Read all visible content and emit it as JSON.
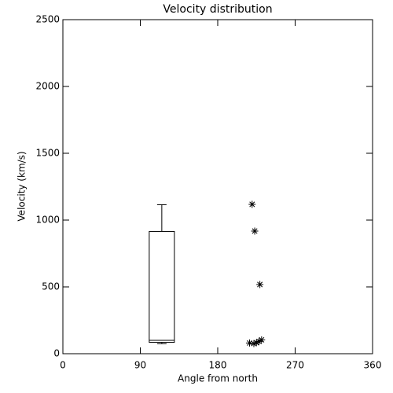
{
  "chart_data": {
    "type": "box",
    "title": "Velocity distribution",
    "xlabel": "Angle from north",
    "ylabel": "Velocity (km/s)",
    "box": {
      "x": 115,
      "min": 75,
      "q1": 85,
      "median": 100,
      "q3": 915,
      "max": 1115
    },
    "points": {
      "x": [
        220,
        223,
        229,
        217,
        222,
        225,
        228,
        231
      ],
      "y": [
        1118,
        918,
        518,
        80,
        76,
        82,
        92,
        104
      ]
    },
    "xlim": [
      0,
      360
    ],
    "xticks": [
      0,
      90,
      180,
      270,
      360
    ],
    "ylim": [
      0,
      2500
    ],
    "yticks": [
      0,
      500,
      1000,
      1500,
      2000,
      2500
    ]
  }
}
